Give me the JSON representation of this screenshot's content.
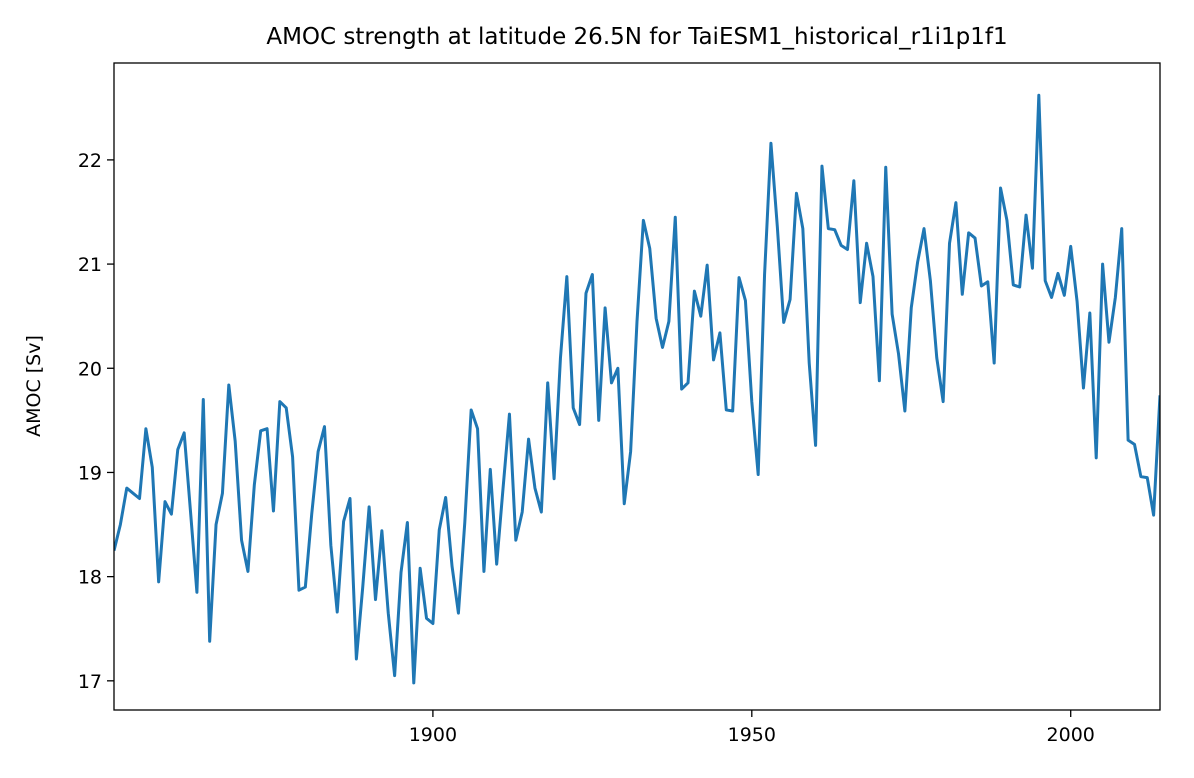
{
  "chart_data": {
    "type": "line",
    "title": "AMOC strength at latitude 26.5N for TaiESM1_historical_r1i1p1f1",
    "xlabel": "",
    "ylabel": "AMOC [Sv]",
    "xlim": [
      1850,
      2014
    ],
    "ylim": [
      16.72,
      22.93
    ],
    "x_ticks": [
      1900,
      1950,
      2000
    ],
    "y_ticks": [
      17,
      18,
      19,
      20,
      21,
      22
    ],
    "grid": false,
    "legend": "none",
    "line_color": "#1f77b4",
    "series": [
      {
        "x": [
          1850,
          1851,
          1852,
          1853,
          1854,
          1855,
          1856,
          1857,
          1858,
          1859,
          1860,
          1861,
          1862,
          1863,
          1864,
          1865,
          1866,
          1867,
          1868,
          1869,
          1870,
          1871,
          1872,
          1873,
          1874,
          1875,
          1876,
          1877,
          1878,
          1879,
          1880,
          1881,
          1882,
          1883,
          1884,
          1885,
          1886,
          1887,
          1888,
          1889,
          1890,
          1891,
          1892,
          1893,
          1894,
          1895,
          1896,
          1897,
          1898,
          1899,
          1900,
          1901,
          1902,
          1903,
          1904,
          1905,
          1906,
          1907,
          1908,
          1909,
          1910,
          1911,
          1912,
          1913,
          1914,
          1915,
          1916,
          1917,
          1918,
          1919,
          1920,
          1921,
          1922,
          1923,
          1924,
          1925,
          1926,
          1927,
          1928,
          1929,
          1930,
          1931,
          1932,
          1933,
          1934,
          1935,
          1936,
          1937,
          1938,
          1939,
          1940,
          1941,
          1942,
          1943,
          1944,
          1945,
          1946,
          1947,
          1948,
          1949,
          1950,
          1951,
          1952,
          1953,
          1954,
          1955,
          1956,
          1957,
          1958,
          1959,
          1960,
          1961,
          1962,
          1963,
          1964,
          1965,
          1966,
          1967,
          1968,
          1969,
          1970,
          1971,
          1972,
          1973,
          1974,
          1975,
          1976,
          1977,
          1978,
          1979,
          1980,
          1981,
          1982,
          1983,
          1984,
          1985,
          1986,
          1987,
          1988,
          1989,
          1990,
          1991,
          1992,
          1993,
          1994,
          1995,
          1996,
          1997,
          1998,
          1999,
          2000,
          2001,
          2002,
          2003,
          2004,
          2005,
          2006,
          2007,
          2008,
          2009,
          2010,
          2011,
          2012,
          2013,
          2014
        ],
        "values": [
          18.25,
          18.5,
          18.85,
          18.8,
          18.75,
          19.42,
          19.05,
          17.95,
          18.72,
          18.6,
          19.22,
          19.38,
          18.62,
          17.85,
          19.7,
          17.38,
          18.5,
          18.8,
          19.84,
          19.3,
          18.35,
          18.05,
          18.88,
          19.4,
          19.42,
          18.63,
          19.68,
          19.62,
          19.15,
          17.87,
          17.9,
          18.6,
          19.2,
          19.44,
          18.3,
          17.66,
          18.53,
          18.75,
          17.21,
          17.9,
          18.67,
          17.78,
          18.44,
          17.65,
          17.05,
          18.04,
          18.52,
          16.98,
          18.08,
          17.6,
          17.55,
          18.45,
          18.76,
          18.1,
          17.65,
          18.52,
          19.6,
          19.42,
          18.05,
          19.03,
          18.12,
          18.85,
          19.56,
          18.35,
          18.62,
          19.32,
          18.85,
          18.62,
          19.86,
          18.94,
          20.1,
          20.88,
          19.62,
          19.46,
          20.72,
          20.9,
          19.5,
          20.58,
          19.86,
          20.0,
          18.7,
          19.2,
          20.45,
          21.42,
          21.15,
          20.48,
          20.2,
          20.45,
          21.45,
          19.8,
          19.86,
          20.74,
          20.5,
          20.99,
          20.08,
          20.34,
          19.6,
          19.59,
          20.87,
          20.65,
          19.68,
          18.98,
          20.9,
          22.16,
          21.36,
          20.44,
          20.66,
          21.68,
          21.34,
          20.05,
          19.26,
          21.94,
          21.34,
          21.33,
          21.18,
          21.14,
          21.8,
          20.63,
          21.2,
          20.88,
          19.88,
          21.93,
          20.52,
          20.14,
          19.59,
          20.58,
          21.02,
          21.34,
          20.84,
          20.1,
          19.68,
          21.2,
          21.59,
          20.71,
          21.3,
          21.25,
          20.79,
          20.83,
          20.05,
          21.73,
          21.42,
          20.8,
          20.78,
          21.47,
          20.96,
          22.62,
          20.84,
          20.68,
          20.91,
          20.7,
          21.17,
          20.64,
          19.81,
          20.53,
          19.14,
          21.0,
          20.25,
          20.68,
          21.34,
          19.31,
          19.27,
          18.96,
          18.95,
          18.59,
          19.74
        ]
      }
    ]
  }
}
